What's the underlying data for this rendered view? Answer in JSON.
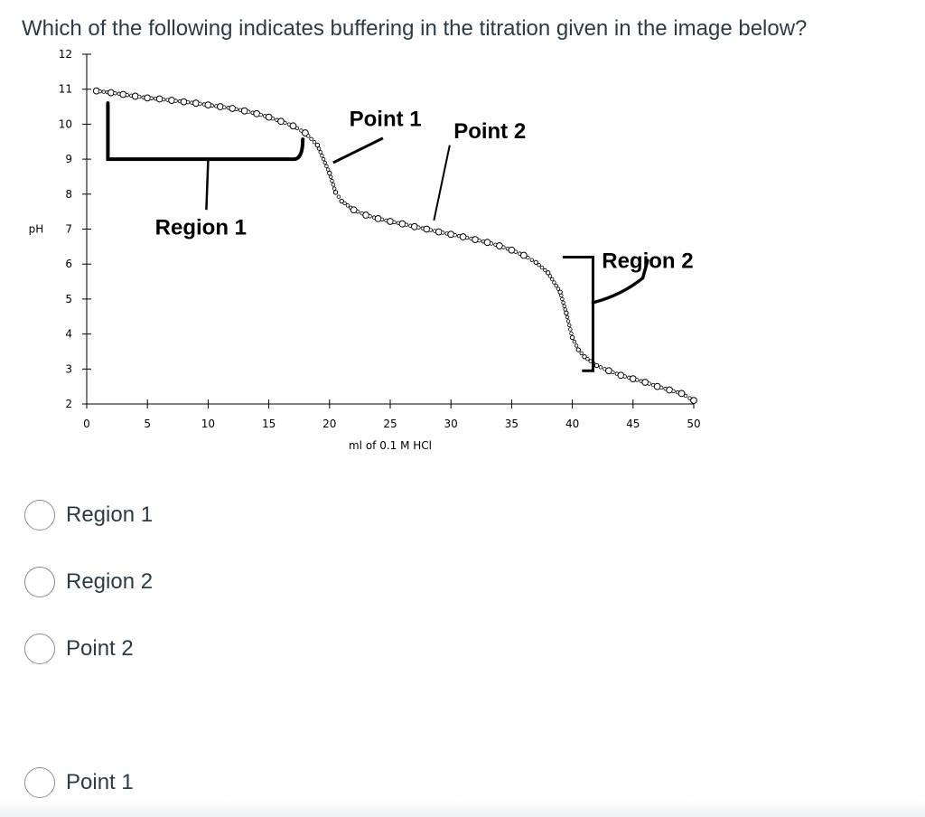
{
  "question": {
    "text": "Which of the following indicates buffering in the titration given in the image below?"
  },
  "chart_data": {
    "type": "scatter",
    "title": "",
    "xlabel": "ml of 0.1 M HCl",
    "ylabel": "pH",
    "xlim": [
      0,
      50
    ],
    "ylim": [
      2,
      12
    ],
    "xticks": [
      "0",
      "5",
      "10",
      "15",
      "20",
      "25",
      "30",
      "35",
      "40",
      "45",
      "50"
    ],
    "yticks": [
      "2",
      "3",
      "4",
      "5",
      "6",
      "7",
      "8",
      "9",
      "10",
      "11",
      "12"
    ],
    "grid": false,
    "x": [
      0.8,
      2,
      3,
      4,
      5,
      6,
      7,
      8,
      9,
      10,
      11,
      12,
      13,
      14,
      15,
      16,
      17,
      18,
      19,
      20,
      20.5,
      21,
      22,
      23,
      24,
      25,
      26,
      27,
      28,
      29,
      30,
      31,
      32,
      33,
      34,
      35,
      36,
      37,
      38,
      39,
      39.5,
      40,
      40.5,
      41,
      42,
      43,
      44,
      45,
      46,
      47,
      48,
      49,
      50
    ],
    "y": [
      10.95,
      10.9,
      10.85,
      10.8,
      10.75,
      10.72,
      10.68,
      10.64,
      10.6,
      10.55,
      10.5,
      10.45,
      10.38,
      10.3,
      10.2,
      10.08,
      9.95,
      9.75,
      9.4,
      8.6,
      8.05,
      7.8,
      7.55,
      7.4,
      7.3,
      7.22,
      7.15,
      7.07,
      7.0,
      6.92,
      6.85,
      6.78,
      6.7,
      6.62,
      6.52,
      6.4,
      6.25,
      6.05,
      5.75,
      5.2,
      4.6,
      3.9,
      3.55,
      3.35,
      3.1,
      2.95,
      2.82,
      2.72,
      2.62,
      2.5,
      2.4,
      2.3,
      2.1
    ],
    "annotations": [
      {
        "text": "Point 1",
        "x": 25,
        "y": 10.0
      },
      {
        "text": "Point 2",
        "x": 32,
        "y": 9.7
      },
      {
        "text": "Region 1",
        "x": 7.5,
        "y": 7.0
      },
      {
        "text": "Region 2",
        "x": 43,
        "y": 6.0
      }
    ],
    "region1": {
      "x_start": 1,
      "x_end": 17.5,
      "y": 9.0,
      "label_x": 10
    },
    "region2": {
      "x_start": 34.8,
      "x_end": 44.5,
      "y": 5.2,
      "label_x": 44.5
    },
    "point1": {
      "x": 20.5,
      "y": 8.2
    },
    "point2": {
      "x": 29.5,
      "y": 7.0
    }
  },
  "choices": [
    {
      "label": "Region 1"
    },
    {
      "label": "Region 2"
    },
    {
      "label": "Point 2"
    },
    {
      "label": "Point 1"
    }
  ]
}
